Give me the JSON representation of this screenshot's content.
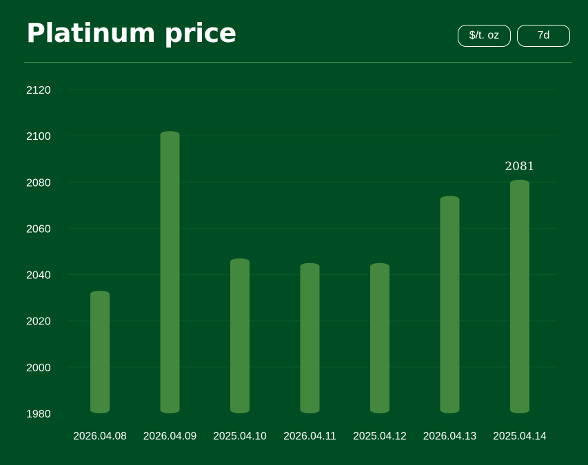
{
  "header": {
    "title": "Platinum price",
    "unit_button": "$/t. oz",
    "range_button": "7d"
  },
  "colors": {
    "background": "#004d23",
    "bar": "#43883e",
    "gridline": "#0a5a2a",
    "divider": "#3f8a4e"
  },
  "chart_data": {
    "type": "bar",
    "title": "Platinum price",
    "xlabel": "",
    "ylabel": "",
    "categories": [
      "2026.04.08",
      "2026.04.09",
      "2025.04.10",
      "2026.04.11",
      "2025.04.12",
      "2026.04.13",
      "2025.04.14"
    ],
    "values": [
      2033,
      2102,
      2047,
      2045,
      2045,
      2074,
      2081
    ],
    "ylim": [
      1980,
      2120
    ],
    "yticks": [
      1980,
      2000,
      2020,
      2040,
      2060,
      2080,
      2100,
      2120
    ],
    "grid": true,
    "legend": "none",
    "annotations": [
      {
        "category": "2025.04.14",
        "text": "2081"
      }
    ]
  }
}
